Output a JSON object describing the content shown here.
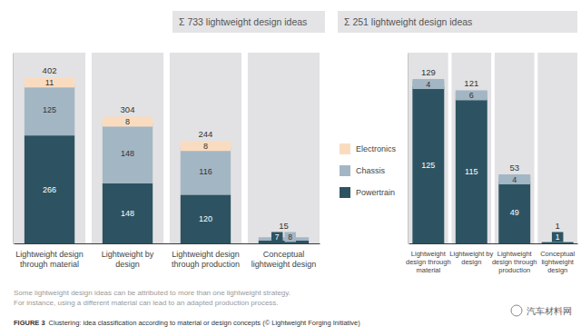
{
  "chart_data": [
    {
      "type": "bar",
      "title": "Σ 733 lightweight design ideas",
      "categories": [
        "Lightweight design through material",
        "Lightweight by design",
        "Lightweight design through production",
        "Conceptual lightweight design"
      ],
      "series": [
        {
          "name": "Powertrain",
          "color": "#2d5362",
          "values": [
            266,
            148,
            120,
            7
          ]
        },
        {
          "name": "Chassis",
          "color": "#a3b6c4",
          "values": [
            125,
            148,
            116,
            8
          ]
        },
        {
          "name": "Electronics",
          "color": "#f9dcc0",
          "values": [
            11,
            8,
            8,
            null
          ]
        }
      ],
      "totals": [
        402,
        304,
        244,
        15
      ],
      "ylim": [
        0,
        470
      ],
      "stacked": true,
      "data_labels": true,
      "tick_labels": "x",
      "legend": "right"
    },
    {
      "type": "bar",
      "title": "Σ 251 lightweight design ideas",
      "categories": [
        "Lightweight design through material",
        "Lightweight by design",
        "Lightweight design through production",
        "Conceptual lightweight design"
      ],
      "series": [
        {
          "name": "Powertrain",
          "color": "#2d5362",
          "values": [
            125,
            115,
            49,
            1
          ]
        },
        {
          "name": "Chassis",
          "color": "#a3b6c4",
          "values": [
            4,
            6,
            4,
            null
          ]
        }
      ],
      "totals": [
        129,
        121,
        53,
        1
      ],
      "ylim": [
        0,
        152
      ],
      "stacked": true,
      "data_labels": true,
      "tick_labels": "x"
    }
  ],
  "footnote": [
    "Some lightweight design ideas can be attributed to more than one lightweight strategy.",
    "For instance, using a different material can lead to an adapted production process."
  ],
  "caption_label": "FIGURE 3",
  "caption": "Clustering: idea classification according to material or design concepts (© Lightweight Forging Initiative)",
  "watermark": "汽车材料网"
}
